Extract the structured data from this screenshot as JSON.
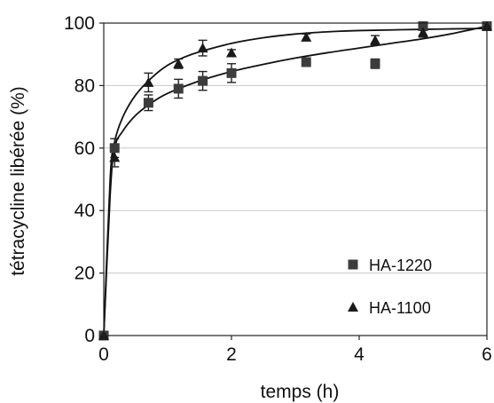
{
  "chart_data": {
    "type": "scatter",
    "xlabel": "temps (h)",
    "ylabel": "tétracycline libérée (%)",
    "xlim": [
      0,
      6
    ],
    "ylim": [
      0,
      100
    ],
    "xticks": [
      0,
      2,
      4,
      6
    ],
    "yticks": [
      0,
      20,
      40,
      60,
      80,
      100
    ],
    "x_tick_labels": [
      "0",
      "2",
      "4",
      "6"
    ],
    "y_tick_labels": [
      "0",
      "20",
      "40",
      "60",
      "80",
      "100"
    ],
    "grid": "horizontal",
    "legend_position": "bottom-right",
    "series": [
      {
        "name": "HA-1220",
        "marker": "square",
        "color": "#3c3c3c",
        "points": [
          {
            "x": 0,
            "y": 0,
            "err": 0
          },
          {
            "x": 0.17,
            "y": 60,
            "err": 3
          },
          {
            "x": 0.7,
            "y": 74.5,
            "err": 2.5
          },
          {
            "x": 1.17,
            "y": 79,
            "err": 3
          },
          {
            "x": 1.55,
            "y": 81.5,
            "err": 3
          },
          {
            "x": 2,
            "y": 84,
            "err": 3
          },
          {
            "x": 3.17,
            "y": 87.5,
            "err": 1
          },
          {
            "x": 4.25,
            "y": 87,
            "err": 1.5
          },
          {
            "x": 5,
            "y": 99,
            "err": 1
          },
          {
            "x": 6,
            "y": 99,
            "err": 0.8
          }
        ],
        "fit": [
          [
            0,
            0
          ],
          [
            0.1,
            45
          ],
          [
            0.17,
            60
          ],
          [
            0.3,
            65.5
          ],
          [
            0.5,
            70.5
          ],
          [
            0.75,
            74.5
          ],
          [
            1,
            77.5
          ],
          [
            1.5,
            81.5
          ],
          [
            2,
            84.5
          ],
          [
            2.5,
            86.8
          ],
          [
            3,
            88.8
          ],
          [
            3.5,
            90.5
          ],
          [
            4,
            92
          ],
          [
            4.5,
            93.5
          ],
          [
            5,
            95
          ],
          [
            5.5,
            96.8
          ],
          [
            6,
            99
          ]
        ]
      },
      {
        "name": "HA-1100",
        "marker": "triangle",
        "color": "#1a1a1a",
        "points": [
          {
            "x": 0,
            "y": 0,
            "err": 0
          },
          {
            "x": 0.17,
            "y": 57,
            "err": 3
          },
          {
            "x": 0.7,
            "y": 81,
            "err": 3
          },
          {
            "x": 1.17,
            "y": 87,
            "err": 1.5
          },
          {
            "x": 1.55,
            "y": 92,
            "err": 2.5
          },
          {
            "x": 2,
            "y": 90.5,
            "err": 1
          },
          {
            "x": 3.17,
            "y": 95.5,
            "err": 1
          },
          {
            "x": 4.25,
            "y": 94.5,
            "err": 1.5
          },
          {
            "x": 5,
            "y": 97,
            "err": 1.5
          },
          {
            "x": 6,
            "y": 99,
            "err": 0.5
          }
        ],
        "fit": [
          [
            0,
            0
          ],
          [
            0.1,
            50
          ],
          [
            0.17,
            62
          ],
          [
            0.3,
            70
          ],
          [
            0.5,
            77
          ],
          [
            0.75,
            82.5
          ],
          [
            1,
            86.5
          ],
          [
            1.25,
            89
          ],
          [
            1.5,
            90.8
          ],
          [
            2,
            93.5
          ],
          [
            2.5,
            95.3
          ],
          [
            3,
            96.5
          ],
          [
            3.5,
            97.2
          ],
          [
            4,
            97.6
          ],
          [
            5,
            98
          ],
          [
            6,
            98.3
          ]
        ]
      }
    ]
  }
}
